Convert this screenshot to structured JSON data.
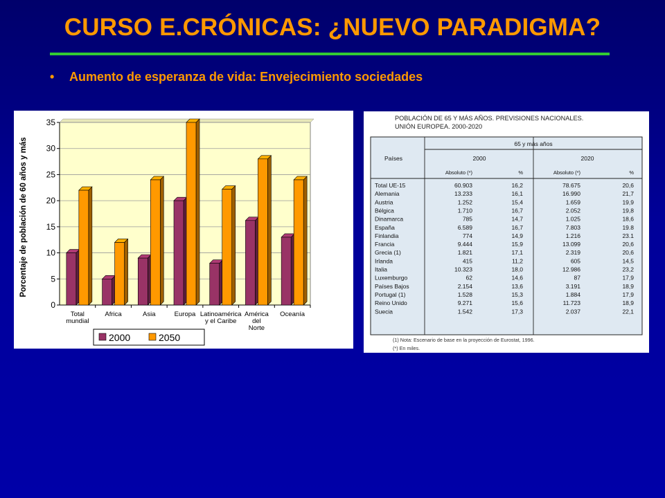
{
  "slide": {
    "title": "CURSO E.CRÓNICAS: ¿NUEVO PARADIGMA?",
    "bullet_marker": "•",
    "bullet": "Aumento de esperanza de vida: Envejecimiento sociedades",
    "colors": {
      "title": "#ff9900",
      "rule": "#33cc33",
      "background": "#000099"
    }
  },
  "chart_data": [
    {
      "type": "bar",
      "ylabel": "Porcentaje de población de 60 años y más",
      "ylim": [
        0,
        35
      ],
      "yticks": [
        0,
        5,
        10,
        15,
        20,
        25,
        30,
        35
      ],
      "categories": [
        [
          "Total",
          "mundial"
        ],
        [
          "Africa"
        ],
        [
          "Asia"
        ],
        [
          "Europa"
        ],
        [
          "Latinoamérica",
          "y el Caribe"
        ],
        [
          "América",
          "del",
          "Norte"
        ],
        [
          "Oceanía"
        ]
      ],
      "series": [
        {
          "name": "2000",
          "values": [
            10,
            5,
            9,
            20,
            8,
            16.2,
            13
          ],
          "color": "#993366"
        },
        {
          "name": "2050",
          "values": [
            22,
            12,
            24,
            35,
            22.2,
            28,
            24
          ],
          "color": "#ff9900"
        }
      ],
      "legend_position": "bottom",
      "grid": true,
      "plot_background": "#ffffcc"
    },
    {
      "type": "table",
      "header_lines": [
        "POBLACIÓN DE 65 Y MÁS AÑOS. PREVISIONES NACIONALES.",
        "UNIÓN EUROPEA. 2000-2020"
      ],
      "group_header": "65 y más años",
      "col_country": "Países",
      "years": [
        "2000",
        "2020"
      ],
      "subheaders": [
        "Absoluto (*)",
        "%",
        "Absoluto (*)",
        "%"
      ],
      "rows": [
        [
          "Total UE-15",
          "60.903",
          "16,2",
          "78.675",
          "20,6"
        ],
        [
          "Alemania",
          "13.233",
          "16,1",
          "16.990",
          "21,7"
        ],
        [
          "Austria",
          "1.252",
          "15,4",
          "1.659",
          "19,9"
        ],
        [
          "Bélgica",
          "1.710",
          "16,7",
          "2.052",
          "19,8"
        ],
        [
          "Dinamarca",
          "785",
          "14,7",
          "1.025",
          "18,6"
        ],
        [
          "España",
          "6.589",
          "16,7",
          "7.803",
          "19.8"
        ],
        [
          "Finlandia",
          "774",
          "14,9",
          "1.216",
          "23.1"
        ],
        [
          "Francia",
          "9.444",
          "15,9",
          "13.099",
          "20,6"
        ],
        [
          "Grecia (1)",
          "1.821",
          "17,1",
          "2.319",
          "20,6"
        ],
        [
          "Irlanda",
          "415",
          "11,2",
          "605",
          "14,5"
        ],
        [
          "Italia",
          "10.323",
          "18,0",
          "12.986",
          "23,2"
        ],
        [
          "Luxemburgo",
          "62",
          "14,6",
          "87",
          "17,9"
        ],
        [
          "Países Bajos",
          "2.154",
          "13,6",
          "3.191",
          "18,9"
        ],
        [
          "Portugal (1)",
          "1.528",
          "15,3",
          "1.884",
          "17,9"
        ],
        [
          "Reino Unido",
          "9.271",
          "15,6",
          "11.723",
          "18,9"
        ],
        [
          "Suecia",
          "1.542",
          "17,3",
          "2.037",
          "22,1"
        ]
      ],
      "footnotes": [
        "(1) Nota: Escenario de base en la proyección de Eurostat, 1996.",
        "(*) En miles."
      ]
    }
  ]
}
